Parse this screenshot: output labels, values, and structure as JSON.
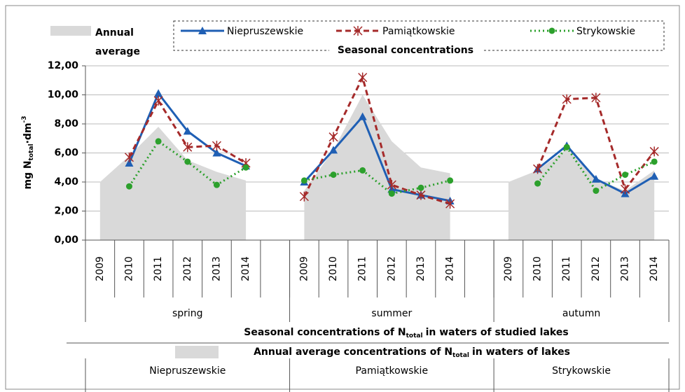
{
  "chart_data": {
    "type": "line",
    "y_label": {
      "main": "mg N",
      "sub": "total",
      "unit": "·dm",
      "sup": "-3"
    },
    "legend_header": "Seasonal concentrations",
    "categories": [
      "2009",
      "2010",
      "2011",
      "2012",
      "2013",
      "2014",
      null,
      "2009",
      "2010",
      "2011",
      "2012",
      "2013",
      "2014",
      null,
      "2009",
      "2010",
      "2011",
      "2012",
      "2013",
      "2014"
    ],
    "groups": [
      {
        "season": "spring",
        "lake": "Niepruszewskie"
      },
      {
        "season": "summer",
        "lake": "Pamiątkowskie"
      },
      {
        "season": "autumn",
        "lake": "Strykowskie"
      }
    ],
    "x_title": {
      "pre": "Seasonal concentrations of N",
      "sub": "total",
      "post": "in waters of studied lakes"
    },
    "x_title2": {
      "pre": "Annual average concentrations of N",
      "sub": "total",
      "post": "in waters of lakes"
    },
    "area": {
      "name": "Annual average",
      "color": "#d9d9d9",
      "values": [
        4.0,
        5.8,
        7.8,
        5.5,
        4.7,
        4.1,
        null,
        3.4,
        6.2,
        10.0,
        6.8,
        5.0,
        4.6,
        null,
        4.0,
        4.8,
        6.3,
        4.2,
        3.4,
        4.8
      ]
    },
    "series": [
      {
        "name": "Niepruszewskie",
        "color": "#1f5fb4",
        "style": "solid",
        "marker": "triangle",
        "values": [
          null,
          5.3,
          10.1,
          7.5,
          6.0,
          5.1,
          null,
          4.0,
          6.2,
          8.5,
          3.5,
          3.1,
          2.7,
          null,
          null,
          4.9,
          6.5,
          4.2,
          3.2,
          4.4
        ]
      },
      {
        "name": "Pamiątkowskie",
        "color": "#a52a2a",
        "style": "dashed",
        "marker": "asterisk",
        "values": [
          null,
          5.7,
          9.6,
          6.4,
          6.5,
          5.3,
          null,
          3.0,
          7.1,
          11.2,
          3.8,
          3.1,
          2.5,
          null,
          null,
          4.9,
          9.7,
          9.8,
          3.5,
          6.1
        ]
      },
      {
        "name": "Strykowskie",
        "color": "#2ca02c",
        "style": "dotted",
        "marker": "circle",
        "values": [
          null,
          3.7,
          6.8,
          5.4,
          3.8,
          5.0,
          null,
          4.1,
          4.5,
          4.8,
          3.2,
          3.6,
          4.1,
          null,
          null,
          3.9,
          6.4,
          3.4,
          4.5,
          5.4
        ]
      }
    ],
    "ylim": [
      0,
      12
    ],
    "yticks": [
      {
        "value": 0,
        "label": "0,00"
      },
      {
        "value": 2,
        "label": "2,00"
      },
      {
        "value": 4,
        "label": "4,00"
      },
      {
        "value": 6,
        "label": "6,00"
      },
      {
        "value": 8,
        "label": "8,00"
      },
      {
        "value": 10,
        "label": "10,00"
      },
      {
        "value": 12,
        "label": "12,00"
      }
    ],
    "grid": true
  }
}
